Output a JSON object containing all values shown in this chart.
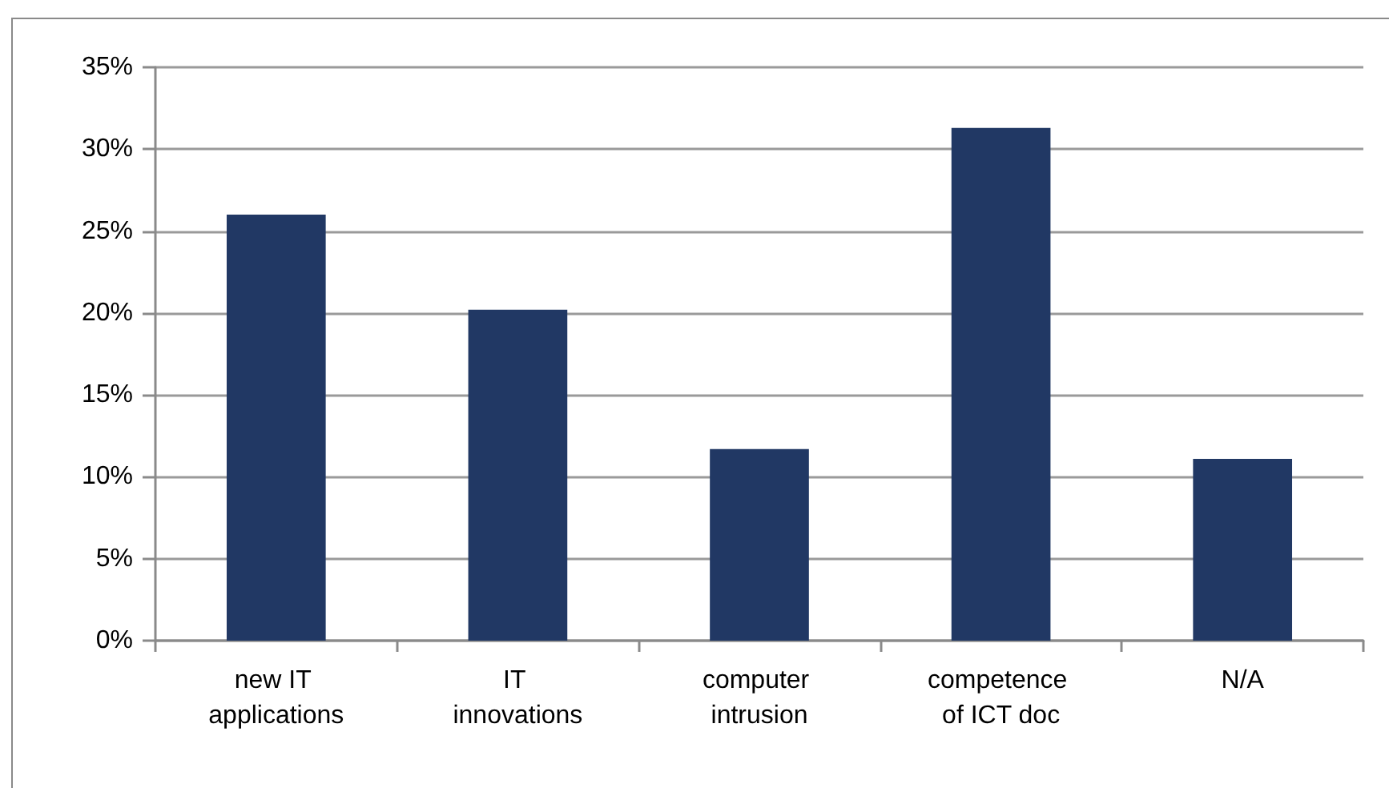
{
  "chart_data": {
    "type": "bar",
    "categories": [
      "new IT applications",
      "IT innovations",
      "computer intrusion",
      "competence of ICT doc",
      "N/A"
    ],
    "values": [
      26.0,
      20.2,
      11.7,
      31.3,
      11.1
    ],
    "color": "#213864",
    "ylim": [
      0,
      35
    ],
    "yticks": [
      {
        "value": 0,
        "label": "0%"
      },
      {
        "value": 5,
        "label": "5%"
      },
      {
        "value": 10,
        "label": "10%"
      },
      {
        "value": 15,
        "label": "15%"
      },
      {
        "value": 20,
        "label": "20%"
      },
      {
        "value": 25,
        "label": "25%"
      },
      {
        "value": 30,
        "label": "30%"
      },
      {
        "value": 35,
        "label": "35%"
      }
    ],
    "grid": "y"
  }
}
